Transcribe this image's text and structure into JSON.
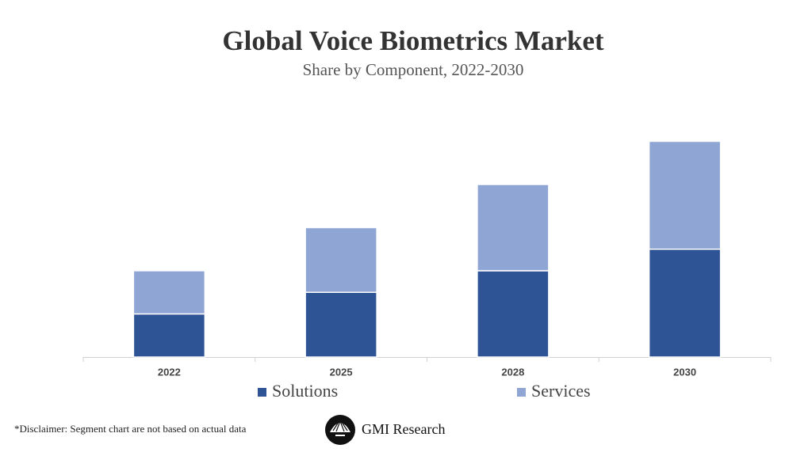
{
  "chart_data": {
    "type": "stacked_bar",
    "title": "Global Voice Biometrics Market",
    "subtitle": "Share by Component, 2022-2030",
    "categories": [
      "2022",
      "2025",
      "2028",
      "2030"
    ],
    "series": [
      {
        "name": "Solutions",
        "color": "#2f5496",
        "values": [
          1,
          1.5,
          2,
          2.5
        ]
      },
      {
        "name": "Services",
        "color": "#8fa5d4",
        "values": [
          1,
          1.5,
          2,
          2.5
        ]
      }
    ]
  },
  "footer": {
    "disclaimer": "*Disclaimer:  Segment chart are not based on actual data",
    "brand": "GMI Research"
  }
}
